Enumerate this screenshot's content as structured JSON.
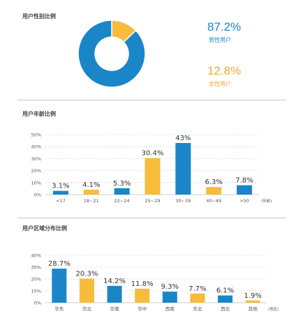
{
  "gender": {
    "title": "用户性别比例",
    "male": {
      "value": "87.2%",
      "label": "男性用户"
    },
    "female": {
      "value": "12.8%",
      "label": "女性用户"
    }
  },
  "age": {
    "title": "用户年龄比例"
  },
  "region": {
    "title": "用户区域分布比例"
  },
  "colors": {
    "blue": "#1a86c8",
    "orange": "#f7bc3c"
  },
  "chart_data": [
    {
      "type": "pie",
      "categories": [
        "男性用户",
        "女性用户"
      ],
      "values": [
        87.2,
        12.8
      ],
      "colors": [
        "#1a86c8",
        "#f7bc3c"
      ]
    },
    {
      "type": "bar",
      "categories": [
        "<17",
        "18~21",
        "22~24",
        "25~29",
        "30~39",
        "40~49",
        ">50"
      ],
      "values": [
        3.1,
        4.1,
        5.3,
        30.4,
        43,
        6.3,
        7.8
      ],
      "labels": [
        "3.1%",
        "4.1%",
        "5.3%",
        "30.4%",
        "43%",
        "6.3%",
        "7.8%"
      ],
      "bar_colors": [
        "#1a86c8",
        "#f7bc3c",
        "#1a86c8",
        "#f7bc3c",
        "#1a86c8",
        "#f7bc3c",
        "#1a86c8"
      ],
      "yticks": [
        "0%",
        "10%",
        "20%",
        "30%",
        "40%",
        "50%"
      ],
      "ylim": [
        0,
        50
      ],
      "xunit": "(年龄)",
      "grid": true
    },
    {
      "type": "bar",
      "categories": [
        "华东",
        "华北",
        "华南",
        "华中",
        "西南",
        "东北",
        "西北",
        "其他"
      ],
      "values": [
        28.7,
        20.3,
        14.2,
        11.8,
        9.3,
        7.7,
        6.1,
        1.9
      ],
      "labels": [
        "28.7%",
        "20.3%",
        "14.2%",
        "11.8%",
        "9.3%",
        "7.7%",
        "6.1%",
        "1.9%"
      ],
      "bar_colors": [
        "#1a86c8",
        "#f7bc3c",
        "#1a86c8",
        "#f7bc3c",
        "#1a86c8",
        "#f7bc3c",
        "#1a86c8",
        "#f7bc3c"
      ],
      "yticks": [
        "0%",
        "10%",
        "20%",
        "30%",
        "40%"
      ],
      "ylim": [
        0,
        40
      ],
      "xunit": "(地区)",
      "grid": true
    }
  ]
}
